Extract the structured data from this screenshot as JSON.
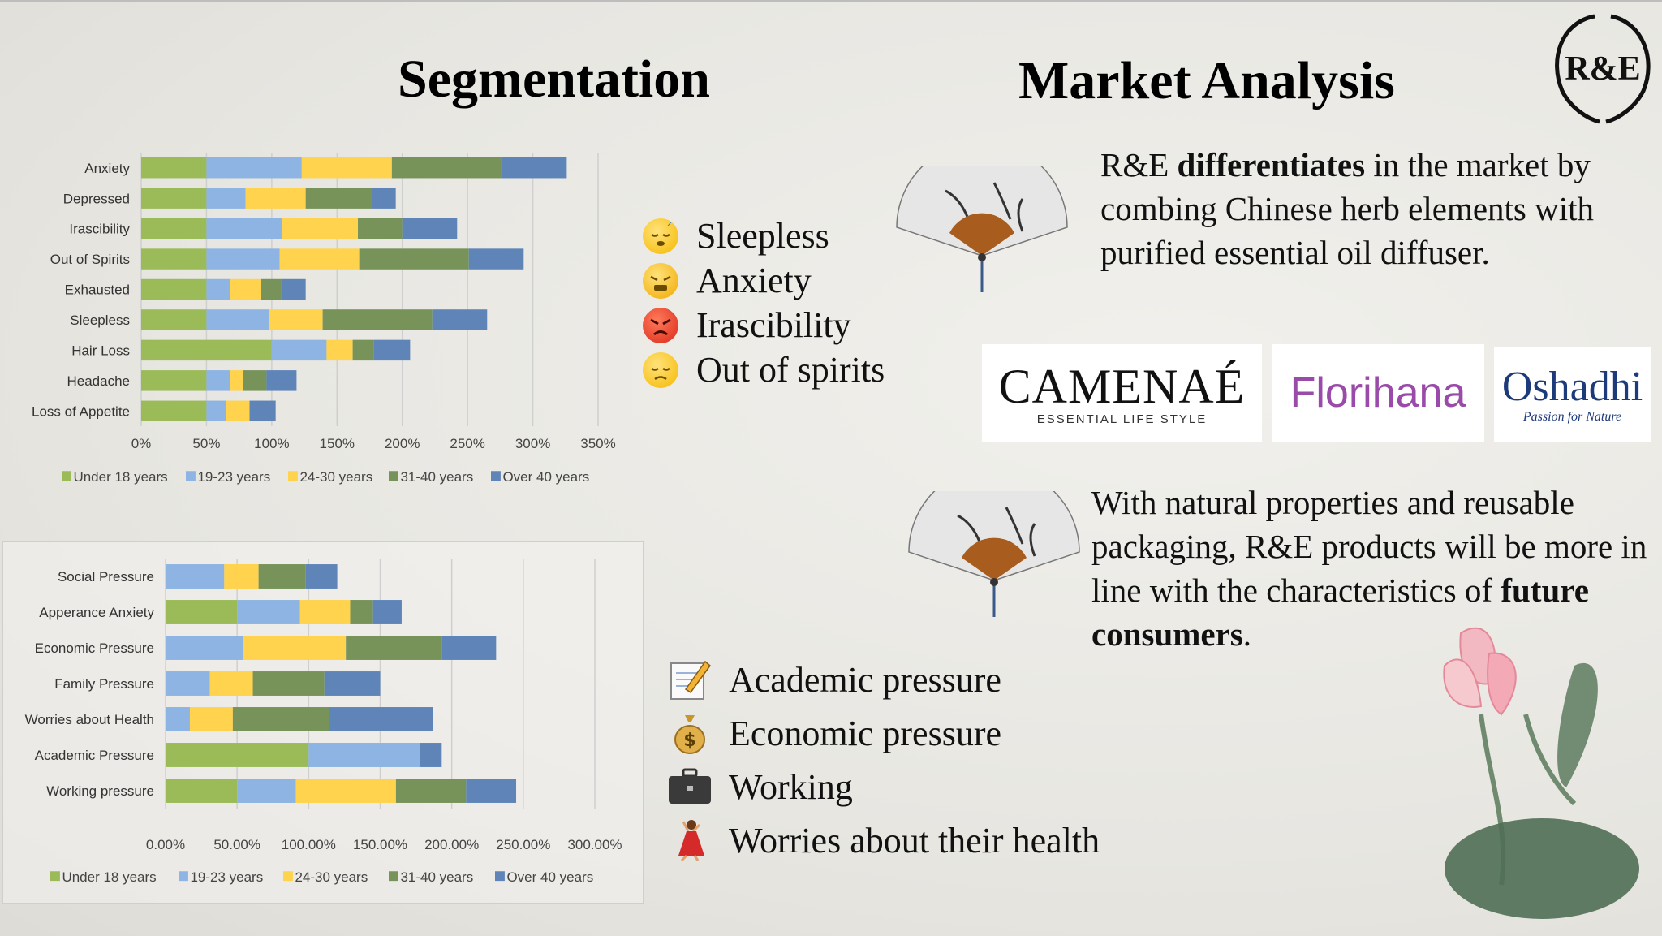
{
  "titles": {
    "segmentation": "Segmentation",
    "market_analysis": "Market Analysis"
  },
  "logo": {
    "text": "R&E"
  },
  "colors": {
    "under18": "#9bbb59",
    "age19_23": "#8db4e2",
    "age24_30": "#ffd34d",
    "age31_40": "#77935a",
    "over40": "#5f85b8"
  },
  "chart_data": [
    {
      "type": "bar",
      "orientation": "horizontal",
      "stacked": true,
      "categories": [
        "Anxiety",
        "Depressed",
        "Irascibility",
        "Out of Spirits",
        "Exhausted",
        "Sleepless",
        "Hair Loss",
        "Headache",
        "Loss of Appetite"
      ],
      "series": [
        {
          "name": "Under 18 years",
          "values": [
            50,
            50,
            50,
            50,
            50,
            50,
            100,
            50,
            50
          ]
        },
        {
          "name": "19-23 years",
          "values": [
            73,
            30,
            58,
            56,
            18,
            48,
            42,
            18,
            15
          ]
        },
        {
          "name": "24-30 years",
          "values": [
            69,
            46,
            58,
            61,
            24,
            41,
            20,
            10,
            18
          ]
        },
        {
          "name": "31-40 years",
          "values": [
            84,
            51,
            34,
            84,
            15,
            84,
            16,
            18,
            0
          ]
        },
        {
          "name": "Over 40 years",
          "values": [
            50,
            18,
            42,
            42,
            19,
            42,
            28,
            23,
            20
          ]
        }
      ],
      "xlim": [
        0,
        350
      ],
      "x_ticks": [
        "0%",
        "50%",
        "100%",
        "150%",
        "200%",
        "250%",
        "300%",
        "350%"
      ],
      "grid": true,
      "legend": "bottom"
    },
    {
      "type": "bar",
      "orientation": "horizontal",
      "stacked": true,
      "categories": [
        "Social Pressure",
        "Apperance Anxiety",
        "Economic Pressure",
        "Family Pressure",
        "Worries about Health",
        "Academic Pressure",
        "Working pressure"
      ],
      "series": [
        {
          "name": "Under 18 years",
          "values": [
            0,
            50,
            0,
            0,
            0,
            100,
            50
          ]
        },
        {
          "name": "19-23 years",
          "values": [
            41,
            44,
            54,
            31,
            17,
            78,
            41
          ]
        },
        {
          "name": "24-30 years",
          "values": [
            24,
            35,
            72,
            30,
            30,
            0,
            70
          ]
        },
        {
          "name": "31-40 years",
          "values": [
            33,
            16,
            67,
            50,
            67,
            0,
            49
          ]
        },
        {
          "name": "Over 40 years",
          "values": [
            22,
            20,
            38,
            39,
            73,
            15,
            35
          ]
        }
      ],
      "xlim": [
        0,
        300
      ],
      "x_ticks": [
        "0.00%",
        "50.00%",
        "100.00%",
        "150.00%",
        "200.00%",
        "250.00%",
        "300.00%"
      ],
      "grid": true,
      "legend": "bottom"
    }
  ],
  "symptoms": [
    {
      "label": "Sleepless",
      "icon": "sleepy-face-icon"
    },
    {
      "label": "Anxiety",
      "icon": "anxious-face-icon"
    },
    {
      "label": "Irascibility",
      "icon": "angry-face-icon"
    },
    {
      "label": "Out of spirits",
      "icon": "disappointed-face-icon"
    }
  ],
  "pressures": [
    {
      "label": "Academic pressure",
      "icon": "memo-pencil-icon"
    },
    {
      "label": "Economic pressure",
      "icon": "money-bag-icon"
    },
    {
      "label": "Working",
      "icon": "briefcase-icon"
    },
    {
      "label": "Worries about their health",
      "icon": "dancer-icon"
    }
  ],
  "market": {
    "p1": {
      "t1": "R&E ",
      "b1": "differentiates",
      "t2": " in the market by combing Chinese herb elements with purified essential oil diffuser."
    },
    "p2": {
      "t1": "With natural properties and reusable packaging, R&E products will be more in line with the characteristics of ",
      "b1": "future consumers",
      "t2": "."
    }
  },
  "brands": {
    "camenae": {
      "name": "CAMENAÉ",
      "tagline": "ESSENTIAL LIFE STYLE"
    },
    "florihana": {
      "name": "Florihana"
    },
    "oshadhi": {
      "name": "Oshadhi",
      "tagline": "Passion for Nature"
    }
  }
}
